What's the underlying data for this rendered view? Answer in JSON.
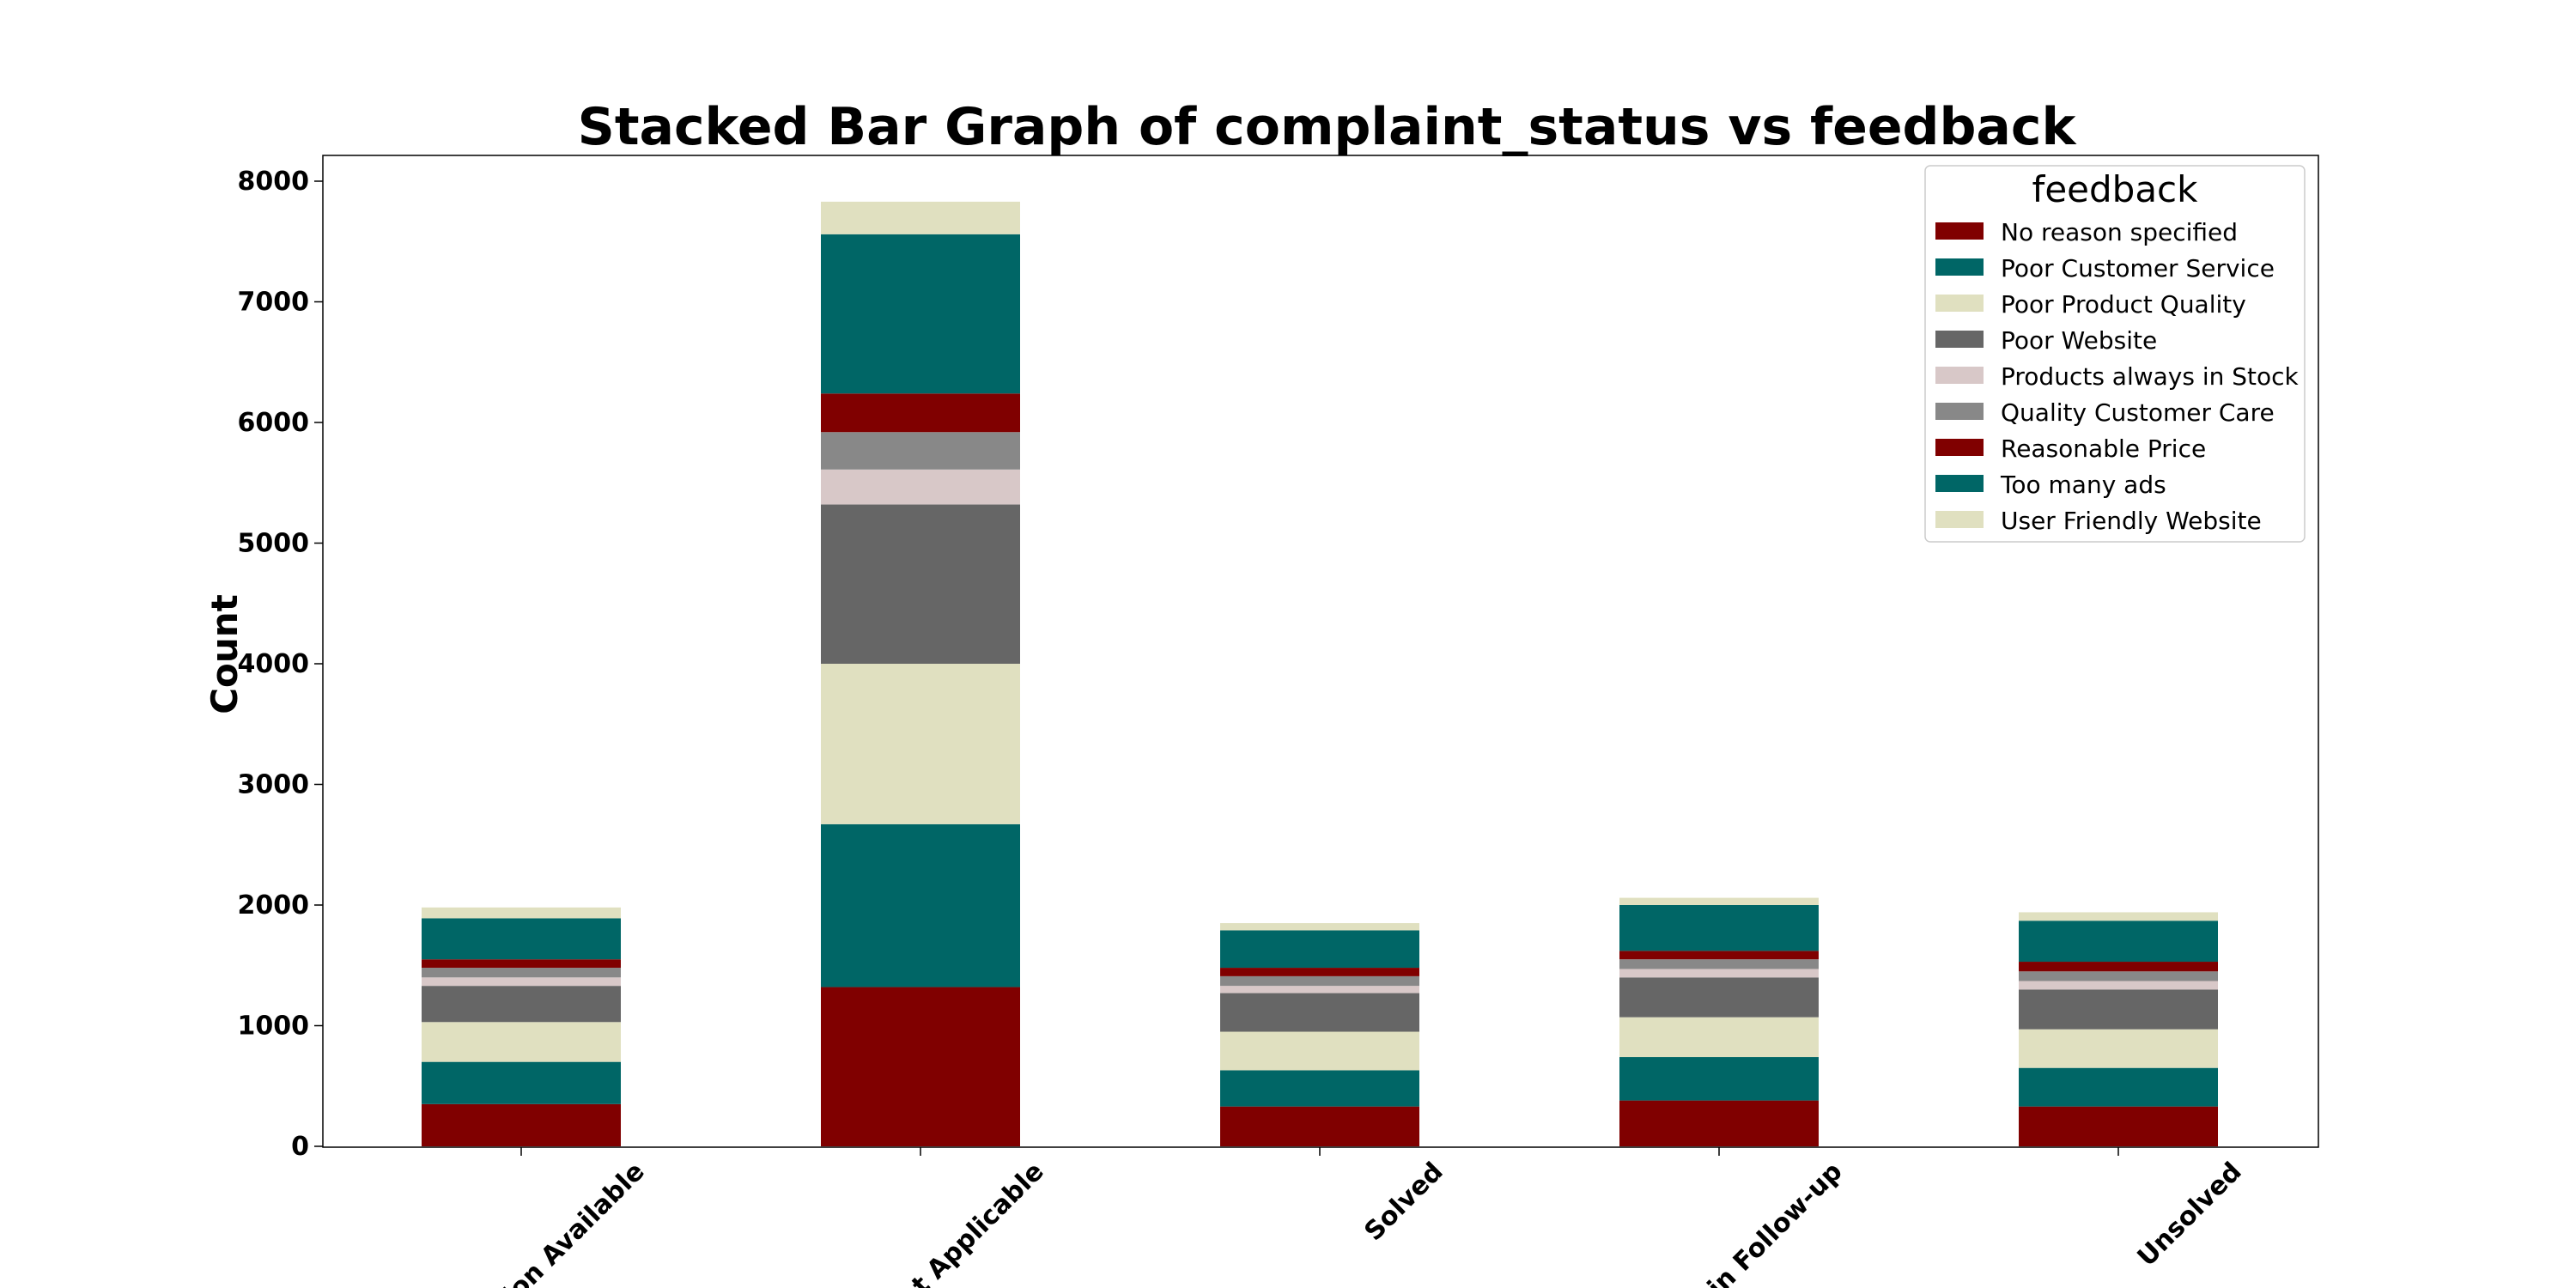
{
  "chart_data": {
    "type": "bar",
    "stacked": true,
    "title": "Stacked Bar Graph of complaint_status vs feedback",
    "ylabel": "Count",
    "xlabel": "",
    "categories": [
      "No Information Available",
      "Not Applicable",
      "Solved",
      "Solved in Follow-up",
      "Unsolved"
    ],
    "visible_category_labels": [
      "tion Available",
      "ot Applicable",
      "Solved",
      "d in Follow-up",
      "Unsolved"
    ],
    "ylim": [
      0,
      8200
    ],
    "yticks": [
      0,
      1000,
      2000,
      3000,
      4000,
      5000,
      6000,
      7000,
      8000
    ],
    "grid": false,
    "legend": {
      "title": "feedback",
      "placement": "top-right"
    },
    "series": [
      {
        "name": "No reason specified",
        "color": "#800000",
        "values": [
          350,
          1320,
          330,
          380,
          330
        ]
      },
      {
        "name": "Poor Customer Service",
        "color": "#006666",
        "values": [
          350,
          1350,
          300,
          360,
          320
        ]
      },
      {
        "name": "Poor Product Quality",
        "color": "#e0e0c0",
        "values": [
          330,
          1330,
          320,
          330,
          320
        ]
      },
      {
        "name": "Poor Website",
        "color": "#666666",
        "values": [
          300,
          1320,
          320,
          330,
          330
        ]
      },
      {
        "name": "Products always in Stock",
        "color": "#d8c8c8",
        "values": [
          70,
          290,
          60,
          70,
          70
        ]
      },
      {
        "name": "Quality Customer Care",
        "color": "#888888",
        "values": [
          80,
          310,
          80,
          80,
          80
        ]
      },
      {
        "name": "Reasonable Price",
        "color": "#800000",
        "values": [
          70,
          320,
          70,
          70,
          80
        ]
      },
      {
        "name": "Too many ads",
        "color": "#006666",
        "values": [
          340,
          1320,
          310,
          380,
          340
        ]
      },
      {
        "name": "User Friendly Website",
        "color": "#e0e0c0",
        "values": [
          90,
          270,
          60,
          60,
          70
        ]
      }
    ]
  }
}
